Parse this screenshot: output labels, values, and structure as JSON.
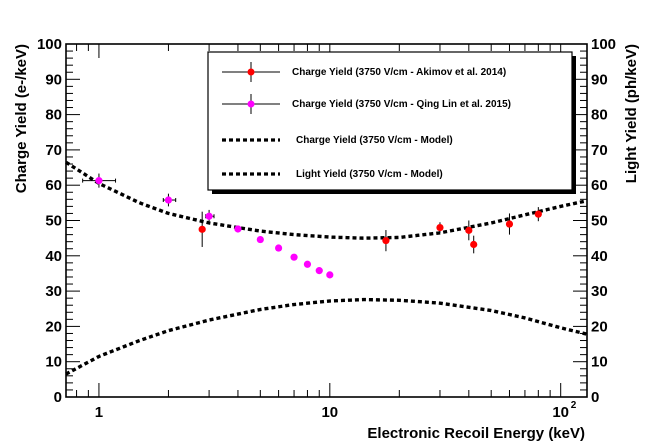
{
  "chart_data": {
    "type": "scatter",
    "xlabel": "Electronic Recoil Energy (keV)",
    "ylabel": "Charge Yield (e-/keV)",
    "y2label": "Light Yield (ph/keV)",
    "xscale": "log",
    "xlim": [
      0.72,
      130
    ],
    "ylim": [
      0,
      100
    ],
    "y2lim": [
      0,
      100
    ],
    "x_tick_labels": [
      {
        "value": 1,
        "label": "1"
      },
      {
        "value": 10,
        "label": "10"
      },
      {
        "value": 100,
        "label": "10",
        "exponent": "2"
      }
    ],
    "y_tick_labels": [
      "0",
      "10",
      "20",
      "30",
      "40",
      "50",
      "60",
      "70",
      "80",
      "90",
      "100"
    ],
    "grid": false,
    "legend_position": "top-right",
    "series": [
      {
        "name": "Charge Yield (3750 V/cm - Akimov et al. 2014)",
        "kind": "errorbar",
        "color": "#ff0000",
        "points": [
          {
            "x": 2.8,
            "y": 47.5,
            "yerr": 5.0
          },
          {
            "x": 17.5,
            "y": 44.3,
            "yerr": 3.0
          },
          {
            "x": 30,
            "y": 48.0,
            "yerr": 1.5
          },
          {
            "x": 40,
            "y": 47.2,
            "yerr": 2.8
          },
          {
            "x": 42,
            "y": 43.2,
            "yerr": 2.5
          },
          {
            "x": 60,
            "y": 49.0,
            "yerr": 3.0
          },
          {
            "x": 80,
            "y": 51.8,
            "yerr": 2.0
          }
        ]
      },
      {
        "name": "Charge Yield (3750 V/cm - Qing Lin et al. 2015)",
        "kind": "errorbar",
        "color": "#ff00ff",
        "points": [
          {
            "x": 1.0,
            "y": 61.3,
            "yerr": 2.0,
            "xerr": [
              0.15,
              0.18
            ]
          },
          {
            "x": 2.0,
            "y": 55.8,
            "yerr": 1.8,
            "xerr": [
              0.1,
              0.15
            ]
          },
          {
            "x": 3.0,
            "y": 51.2,
            "yerr": 1.8,
            "xerr": [
              0.1,
              0.15
            ]
          },
          {
            "x": 4.0,
            "y": 47.6
          },
          {
            "x": 5.0,
            "y": 44.6
          },
          {
            "x": 6.0,
            "y": 42.2
          },
          {
            "x": 7.0,
            "y": 39.6
          },
          {
            "x": 8.0,
            "y": 37.6
          },
          {
            "x": 9.0,
            "y": 35.8
          },
          {
            "x": 10.0,
            "y": 34.6
          }
        ]
      },
      {
        "name": "Charge Yield (3750 V/cm - Model)",
        "kind": "dashed-line",
        "color": "#000000",
        "x": [
          0.72,
          1,
          1.5,
          2,
          3,
          5,
          7,
          10,
          14,
          20,
          30,
          50,
          70,
          100,
          130
        ],
        "y": [
          66.5,
          60.5,
          55.0,
          52.0,
          49.3,
          47.0,
          46.0,
          45.3,
          45.0,
          45.2,
          46.5,
          49.3,
          51.6,
          54.0,
          55.6
        ]
      },
      {
        "name": "Light Yield (3750 V/cm - Model)",
        "kind": "dashed-line",
        "color": "#000000",
        "x": [
          0.72,
          1,
          1.5,
          2,
          3,
          5,
          7,
          10,
          14,
          20,
          30,
          50,
          70,
          100,
          130
        ],
        "y": [
          6.5,
          11.5,
          16.0,
          18.8,
          21.8,
          24.8,
          26.2,
          27.2,
          27.6,
          27.4,
          26.6,
          24.5,
          22.4,
          19.6,
          17.8
        ]
      }
    ]
  }
}
